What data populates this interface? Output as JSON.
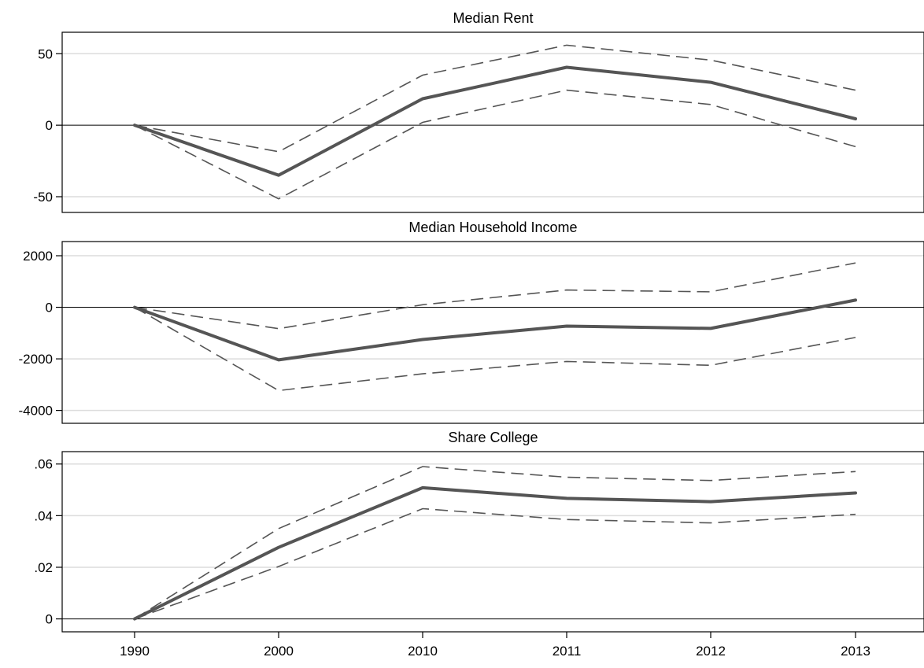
{
  "chart_data": {
    "type": "line",
    "categories": [
      "1990",
      "2000",
      "2010",
      "2011",
      "2012",
      "2013"
    ],
    "colors": {
      "estimate": "#555555",
      "confidence": "#555555"
    },
    "panels": [
      {
        "id": "rent",
        "title": "Median Rent",
        "ylim": [
          -61,
          65
        ],
        "yticks": [
          50,
          0,
          -50
        ],
        "ytick_labels": [
          "50",
          "0",
          "-50"
        ],
        "grid": true,
        "series": [
          {
            "role": "estimate",
            "values": [
              0,
              -35,
              18.5,
              40.5,
              30,
              4.5
            ]
          },
          {
            "role": "upper",
            "values": [
              0,
              -18.5,
              35,
              56,
              45.5,
              24.5
            ]
          },
          {
            "role": "lower",
            "values": [
              0,
              -51.5,
              2,
              24.5,
              14.5,
              -15
            ]
          }
        ]
      },
      {
        "id": "income",
        "title": "Median Household Income",
        "ylim": [
          -4500,
          2550
        ],
        "yticks": [
          2000,
          0,
          -2000,
          -4000
        ],
        "ytick_labels": [
          "2000",
          "0",
          "-2000",
          "-4000"
        ],
        "grid": true,
        "series": [
          {
            "role": "estimate",
            "values": [
              0,
              -2040,
              -1250,
              -730,
              -820,
              280
            ]
          },
          {
            "role": "upper",
            "values": [
              0,
              -830,
              100,
              670,
              600,
              1720
            ]
          },
          {
            "role": "lower",
            "values": [
              0,
              -3230,
              -2580,
              -2100,
              -2250,
              -1170
            ]
          }
        ]
      },
      {
        "id": "college",
        "title": "Share College",
        "ylim": [
          -0.005,
          0.0648
        ],
        "yticks": [
          0.06,
          0.04,
          0.02,
          0
        ],
        "ytick_labels": [
          ".06",
          ".04",
          ".02",
          "0"
        ],
        "grid": true,
        "series": [
          {
            "role": "estimate",
            "values": [
              0,
              0.0277,
              0.0508,
              0.0467,
              0.0454,
              0.0488
            ]
          },
          {
            "role": "upper",
            "values": [
              0,
              0.035,
              0.059,
              0.0549,
              0.0536,
              0.0571
            ]
          },
          {
            "role": "lower",
            "values": [
              0,
              0.0203,
              0.0427,
              0.0385,
              0.0372,
              0.0405
            ]
          }
        ]
      }
    ]
  }
}
